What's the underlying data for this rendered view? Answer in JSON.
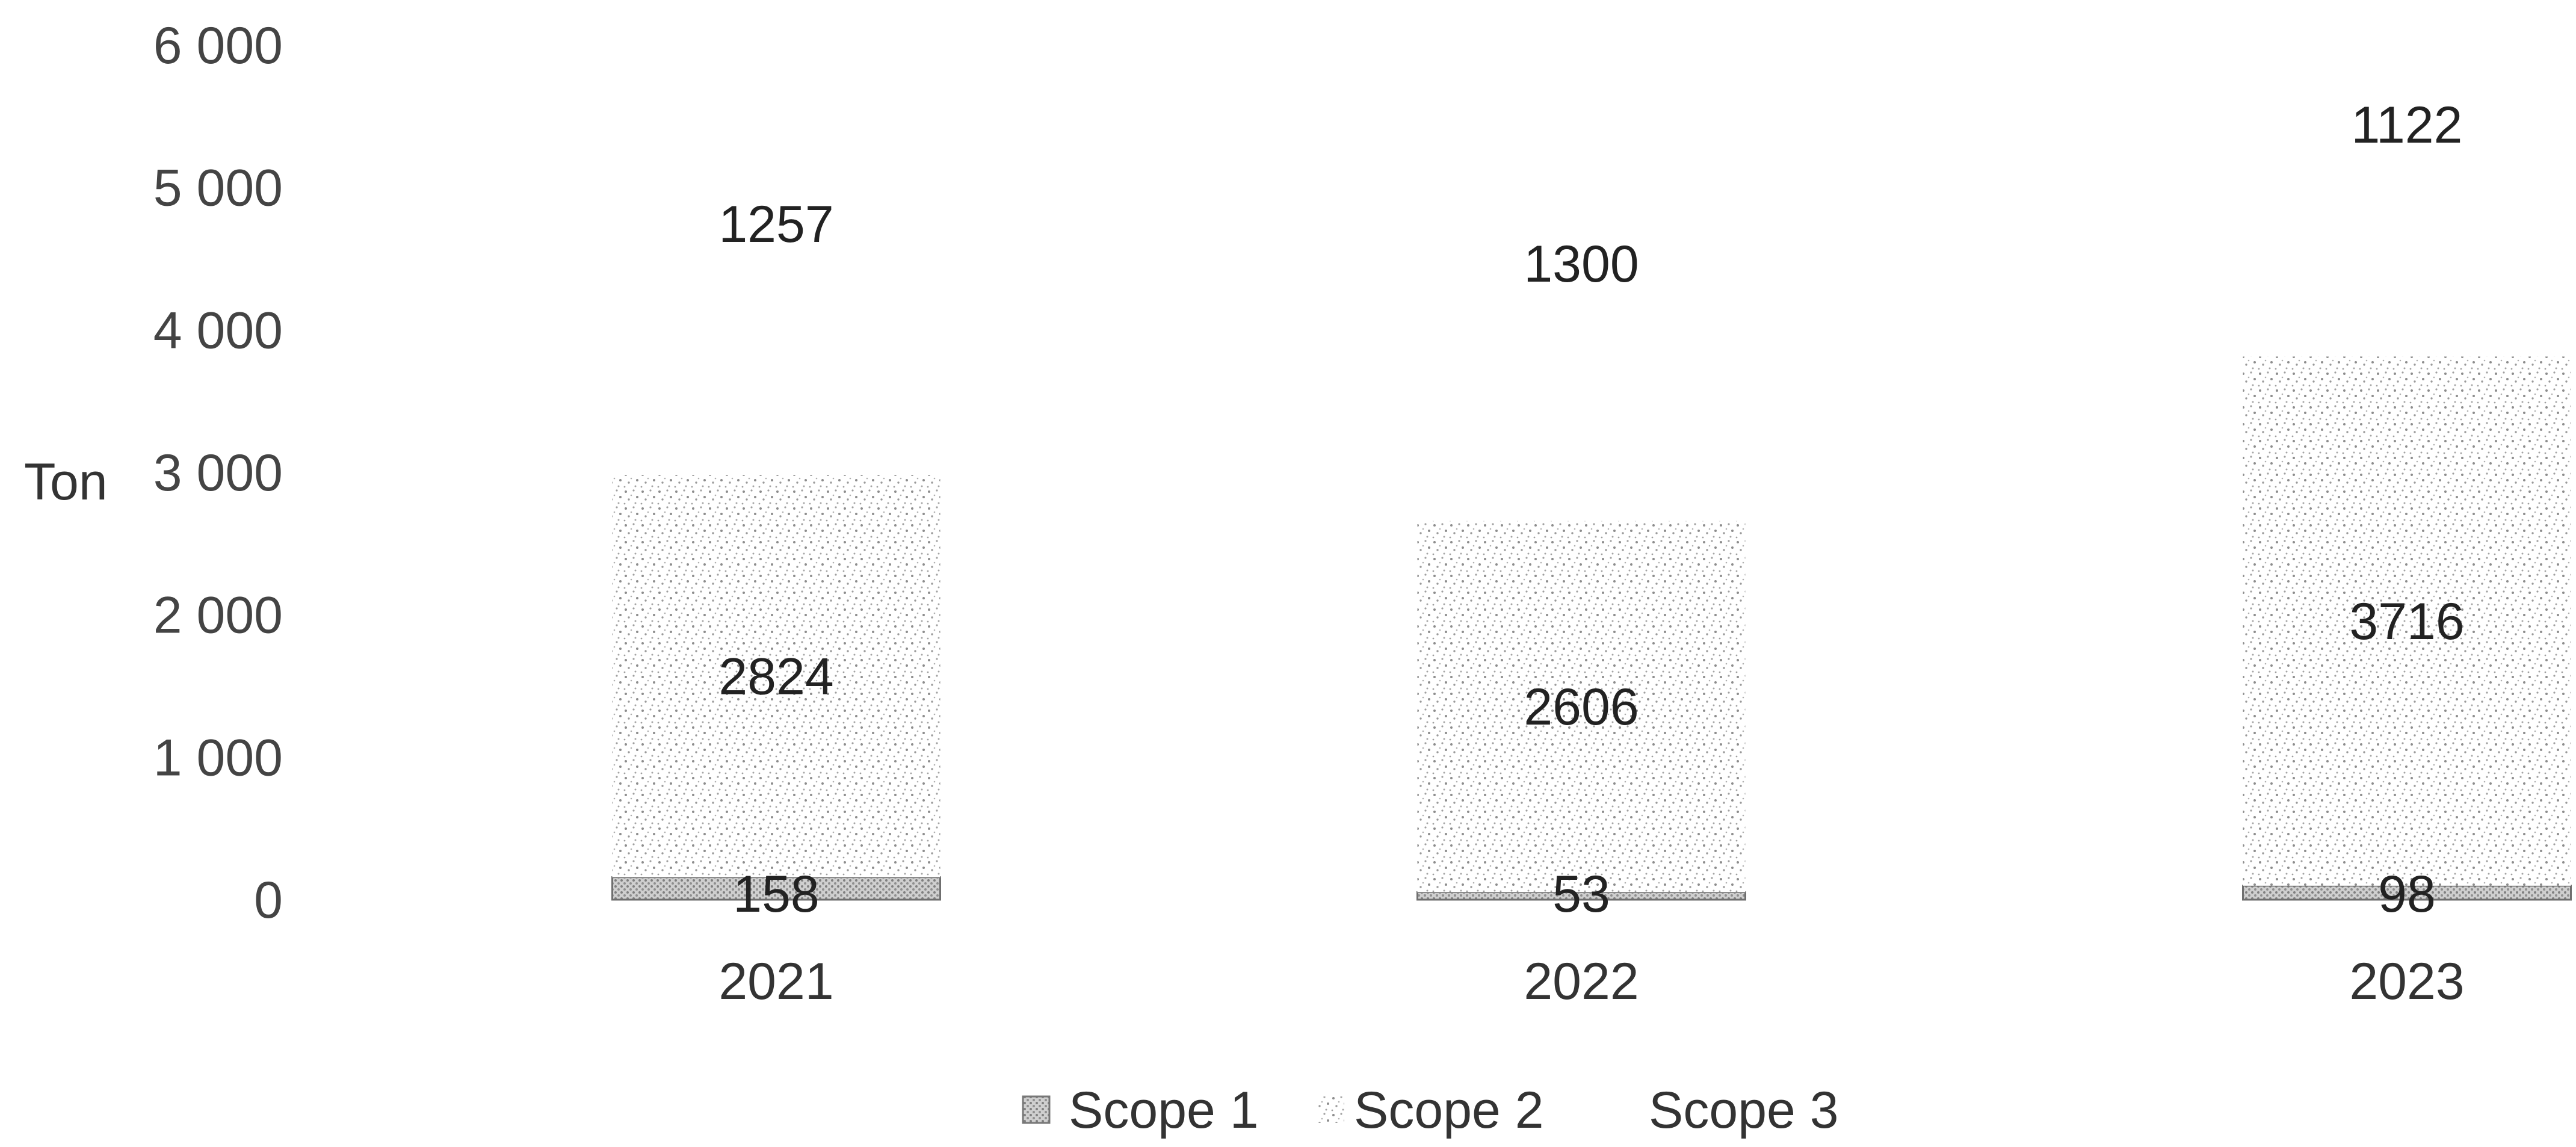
{
  "chart_data": {
    "type": "bar",
    "stacked": true,
    "categories": [
      "2021",
      "2022",
      "2023"
    ],
    "series": [
      {
        "name": "Scope 1",
        "values": [
          158,
          53,
          98
        ],
        "pattern": "dense-dots",
        "color": "#8a8a8a"
      },
      {
        "name": "Scope 2",
        "values": [
          2824,
          2606,
          3716
        ],
        "pattern": "speckle",
        "color": "#9a9a9a"
      },
      {
        "name": "Scope 3",
        "values": [
          1257,
          1300,
          1122
        ],
        "pattern": "none",
        "color": "#ffffff"
      }
    ],
    "ylabel": "Ton",
    "ylim": [
      0,
      6000
    ],
    "yticks": [
      0,
      1000,
      2000,
      3000,
      4000,
      5000,
      6000
    ],
    "ytick_labels": [
      "0",
      "1 000",
      "2 000",
      "3 000",
      "4 000",
      "5 000",
      "6 000"
    ],
    "grid": false,
    "legend_position": "bottom"
  }
}
